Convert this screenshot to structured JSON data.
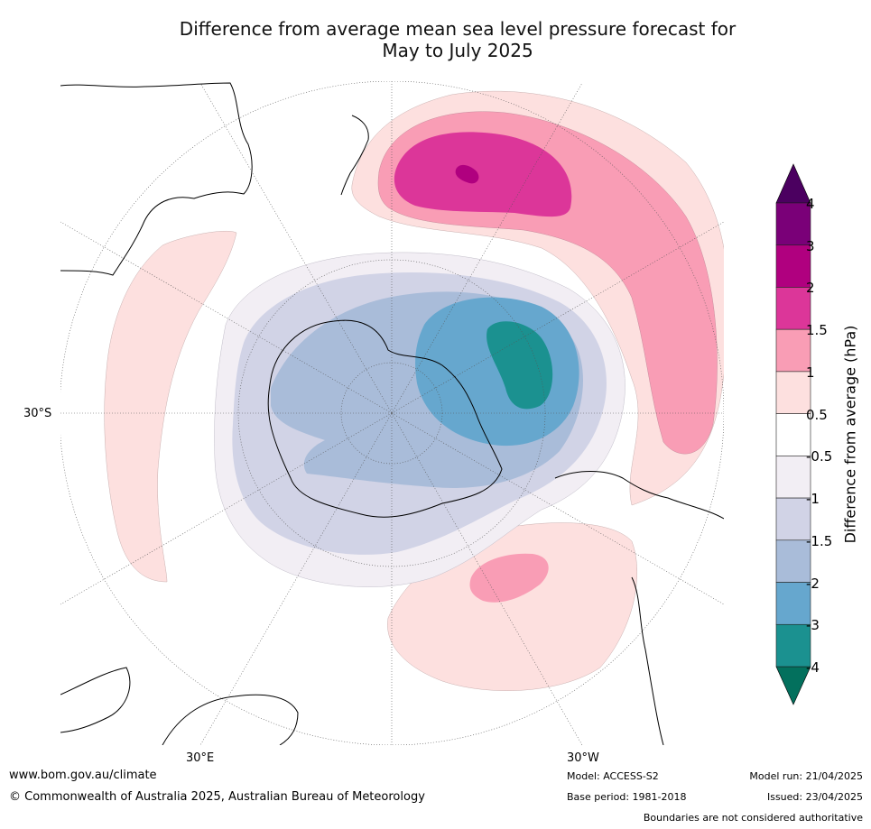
{
  "title_line1": "Difference from average mean sea level pressure forecast for",
  "title_line2": "May to July 2025",
  "map": {
    "labels": {
      "lat_30s": "30°S",
      "lon_30e": "30°E",
      "lon_30w": "30°W"
    }
  },
  "colorbar": {
    "label": "Difference from average (hPa)",
    "ticks": [
      "4",
      "3",
      "2",
      "1.5",
      "1",
      "0.5",
      "-0.5",
      "-1",
      "-1.5",
      "-2",
      "-3",
      "-4"
    ],
    "colors": [
      "#4b0060",
      "#7a0078",
      "#b0007f",
      "#dc3699",
      "#f99db5",
      "#fde0df",
      "#ffffff",
      "#f2eef4",
      "#d1d3e6",
      "#a9bcd9",
      "#66a7ce",
      "#1b9190",
      "#03705d"
    ]
  },
  "footer": {
    "website": "www.bom.gov.au/climate",
    "copyright": "© Commonwealth of Australia 2025, Australian Bureau of Meteorology",
    "model": "Model: ACCESS-S2",
    "base_period": "Base period: 1981-2018",
    "model_run": "Model run: 21/04/2025",
    "issued": "Issued: 23/04/2025",
    "disclaimer": "Boundaries are not considered authoritative"
  }
}
